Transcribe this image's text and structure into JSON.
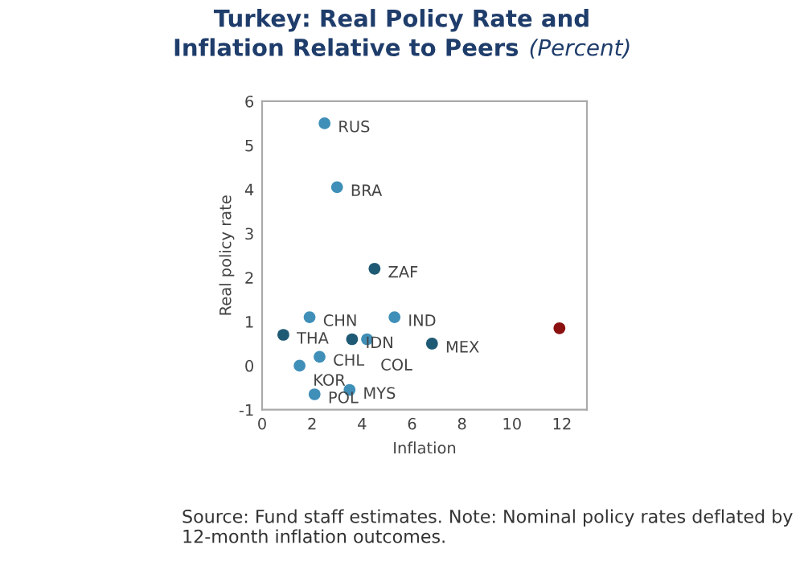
{
  "chart_data": {
    "type": "scatter",
    "title": "Turkey: Real Policy Rate and Inflation Relative to Peers",
    "subtitle": "(Percent)",
    "xlabel": "Inflation",
    "ylabel": "Real policy rate",
    "series": [
      {
        "x": [
          2.5,
          3.0,
          4.5,
          1.9,
          5.3,
          3.6,
          4.2,
          0.85,
          6.8,
          2.3,
          1.5,
          2.1,
          3.5,
          11.9
        ],
        "values": [
          5.5,
          4.05,
          2.2,
          1.1,
          1.1,
          0.6,
          0.6,
          0.7,
          0.5,
          0.2,
          0.0,
          -0.65,
          -0.55,
          0.85
        ],
        "colors": [
          "#3f8fb8",
          "#3f8fb8",
          "#1f5a74",
          "#3f8fb8",
          "#3f8fb8",
          "#1f5a74",
          "#3f8fb8",
          "#1f5a74",
          "#1f5a74",
          "#3f8fb8",
          "#3f8fb8",
          "#3f8fb8",
          "#3f8fb8",
          "#8b1010"
        ]
      }
    ],
    "marker": "circle",
    "xlim": [
      0,
      13
    ],
    "xticks": [
      0,
      2,
      4,
      6,
      8,
      10,
      12
    ],
    "ylim": [
      -1,
      6
    ],
    "yticks": [
      -1,
      0,
      1,
      2,
      3,
      4,
      5,
      6
    ],
    "grid": false,
    "annotations": [
      {
        "text": "RUS",
        "x": 2.5,
        "y": 5.5
      },
      {
        "text": "BRA",
        "x": 3.0,
        "y": 4.05
      },
      {
        "text": "ZAF",
        "x": 4.5,
        "y": 2.2
      },
      {
        "text": "CHN",
        "x": 1.9,
        "y": 1.1
      },
      {
        "text": "IND",
        "x": 5.3,
        "y": 1.1
      },
      {
        "text": "IDN",
        "x": 3.6,
        "y": 0.6
      },
      {
        "text": "COL",
        "x": 4.2,
        "y": 0.6
      },
      {
        "text": "THA",
        "x": 0.85,
        "y": 0.7
      },
      {
        "text": "MEX",
        "x": 6.8,
        "y": 0.5
      },
      {
        "text": "CHL",
        "x": 2.3,
        "y": 0.2
      },
      {
        "text": "KOR",
        "x": 1.5,
        "y": 0.0
      },
      {
        "text": "POL",
        "x": 2.1,
        "y": -0.65
      },
      {
        "text": "MYS",
        "x": 3.5,
        "y": -0.55
      },
      "Source: Fund staff estimates. Note: Nominal policy rates deflated by 12-month inflation outcomes."
    ]
  }
}
